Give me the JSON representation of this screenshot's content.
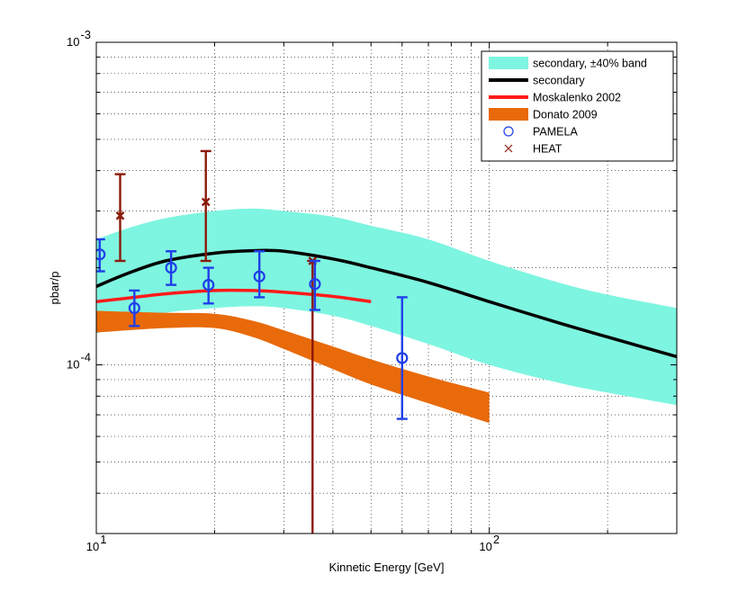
{
  "chart_data": {
    "type": "line",
    "xscale": "log",
    "yscale": "log",
    "xlim": [
      10,
      300
    ],
    "ylim": [
      3e-05,
      0.001
    ],
    "xlabel": "Kinnetic Energy [GeV]",
    "ylabel": "pbar/p",
    "grid": true,
    "legend_location": "top-right",
    "x_tick_labels": [
      {
        "value": 10,
        "mantissa": "10",
        "exponent": "1"
      },
      {
        "value": 100,
        "mantissa": "10",
        "exponent": "2"
      }
    ],
    "y_tick_labels": [
      {
        "value": 0.0001,
        "mantissa": "10",
        "exponent": "-4"
      },
      {
        "value": 0.001,
        "mantissa": "10",
        "exponent": "-3"
      }
    ],
    "series": [
      {
        "name": "secondary, ±40% band",
        "kind": "band",
        "color": "#7ef5e0",
        "x": [
          10,
          12,
          15,
          20,
          25,
          30,
          40,
          50,
          70,
          100,
          150,
          200,
          300
        ],
        "lower": [
          0.000125,
          0.000135,
          0.000145,
          0.00015,
          0.000152,
          0.00015,
          0.000142,
          0.000132,
          0.000116,
          0.0001,
          8.8e-05,
          8.2e-05,
          7.5e-05
        ],
        "upper": [
          0.000245,
          0.000265,
          0.000285,
          0.0003,
          0.000305,
          0.0003,
          0.000288,
          0.00027,
          0.000245,
          0.00021,
          0.00018,
          0.000165,
          0.00015
        ]
      },
      {
        "name": "secondary",
        "kind": "line",
        "color": "#000000",
        "x": [
          10,
          12,
          15,
          20,
          25,
          30,
          40,
          50,
          70,
          100,
          150,
          200,
          300
        ],
        "y": [
          0.000175,
          0.000192,
          0.00021,
          0.000222,
          0.000226,
          0.000225,
          0.000213,
          0.0002,
          0.00018,
          0.000157,
          0.000135,
          0.000122,
          0.000106
        ]
      },
      {
        "name": "Moskalenko 2002",
        "kind": "line",
        "color": "#ff1a1a",
        "x": [
          10,
          12,
          15,
          20,
          25,
          30,
          40,
          50
        ],
        "y": [
          0.000157,
          0.000161,
          0.000166,
          0.00017,
          0.00017,
          0.000168,
          0.000163,
          0.000157
        ]
      },
      {
        "name": "Donato 2009",
        "kind": "band",
        "color": "#e86a0a",
        "x": [
          10,
          15,
          20,
          25,
          30,
          40,
          50,
          70,
          100
        ],
        "lower": [
          0.000126,
          0.00013,
          0.00013,
          0.000122,
          0.000112,
          9.7e-05,
          8.7e-05,
          7.6e-05,
          6.6e-05
        ],
        "upper": [
          0.000147,
          0.000145,
          0.000144,
          0.000137,
          0.000128,
          0.000114,
          0.000104,
          9.2e-05,
          8.2e-05
        ]
      },
      {
        "name": "PAMELA",
        "kind": "errorbar",
        "marker": "o",
        "color": "#1f3fe8",
        "points": [
          {
            "x": 10.2,
            "y": 0.00022,
            "low": 0.000195,
            "high": 0.000245
          },
          {
            "x": 12.5,
            "y": 0.00015,
            "low": 0.000132,
            "high": 0.00017
          },
          {
            "x": 15.5,
            "y": 0.0002,
            "low": 0.000177,
            "high": 0.000225
          },
          {
            "x": 19.3,
            "y": 0.000177,
            "low": 0.000155,
            "high": 0.0002
          },
          {
            "x": 26.0,
            "y": 0.000188,
            "low": 0.000162,
            "high": 0.000225
          },
          {
            "x": 36.0,
            "y": 0.000178,
            "low": 0.000148,
            "high": 0.00021
          },
          {
            "x": 60.0,
            "y": 0.000105,
            "low": 6.8e-05,
            "high": 0.000162
          }
        ]
      },
      {
        "name": "HEAT",
        "kind": "errorbar",
        "marker": "x",
        "color": "#8b1a0a",
        "points": [
          {
            "x": 11.5,
            "y": 0.00029,
            "low": 0.00021,
            "high": 0.00039
          },
          {
            "x": 19.0,
            "y": 0.00032,
            "low": 0.00021,
            "high": 0.00046
          },
          {
            "x": 35.5,
            "y": 0.00021,
            "low": 3e-05,
            "high": 0.00021
          }
        ]
      }
    ]
  }
}
